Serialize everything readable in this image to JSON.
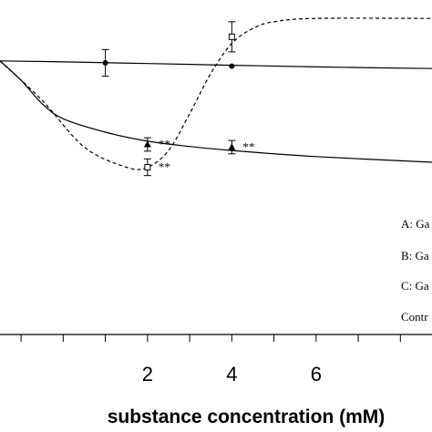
{
  "chart_data": {
    "type": "line",
    "xlabel": "substance concentration (mM)",
    "ylabel": "",
    "x_ticks": [
      "2",
      "4",
      "6"
    ],
    "xlim": [
      -1.5,
      8.75
    ],
    "ylim": [
      0,
      1
    ],
    "legend_position": "bottom-right",
    "legend": [
      "A: Ga",
      "B: Ga",
      "C: Ga",
      "Contr"
    ],
    "series": [
      {
        "marker": "circle",
        "line": "solid",
        "points": [
          {
            "x": 1,
            "y": 0.812,
            "err": 0.04
          },
          {
            "x": 4,
            "y": 0.802,
            "err": 0
          }
        ],
        "curve": [
          [
            -1.5,
            0.818
          ],
          [
            0,
            0.815
          ],
          [
            2,
            0.81
          ],
          [
            4,
            0.805
          ],
          [
            6,
            0.8
          ],
          [
            8.75,
            0.795
          ]
        ]
      },
      {
        "marker": "triangle",
        "line": "solid",
        "points": [
          {
            "x": 2,
            "y": 0.568,
            "err": 0.02,
            "label": "**"
          },
          {
            "x": 4,
            "y": 0.56,
            "err": 0.02,
            "label": "**"
          }
        ],
        "curve": [
          [
            -1.5,
            0.818
          ],
          [
            -1,
            0.76
          ],
          [
            -0.5,
            0.69
          ],
          [
            0,
            0.645
          ],
          [
            1,
            0.605
          ],
          [
            2,
            0.578
          ],
          [
            3,
            0.562
          ],
          [
            4,
            0.55
          ],
          [
            6,
            0.532
          ],
          [
            8.75,
            0.515
          ]
        ]
      },
      {
        "marker": "square-open",
        "line": "dashed",
        "points": [
          {
            "x": 2,
            "y": 0.5,
            "err": 0.025,
            "label": "**"
          },
          {
            "x": 4,
            "y": 0.89,
            "err": 0.045
          }
        ],
        "curve": [
          [
            -1.5,
            0.818
          ],
          [
            -0.5,
            0.7
          ],
          [
            0.5,
            0.56
          ],
          [
            1.5,
            0.5
          ],
          [
            2,
            0.5
          ],
          [
            2.5,
            0.55
          ],
          [
            3,
            0.66
          ],
          [
            3.5,
            0.78
          ],
          [
            4,
            0.87
          ],
          [
            4.5,
            0.915
          ],
          [
            5,
            0.935
          ],
          [
            6,
            0.945
          ],
          [
            8.75,
            0.945
          ]
        ]
      }
    ],
    "grid": false
  }
}
